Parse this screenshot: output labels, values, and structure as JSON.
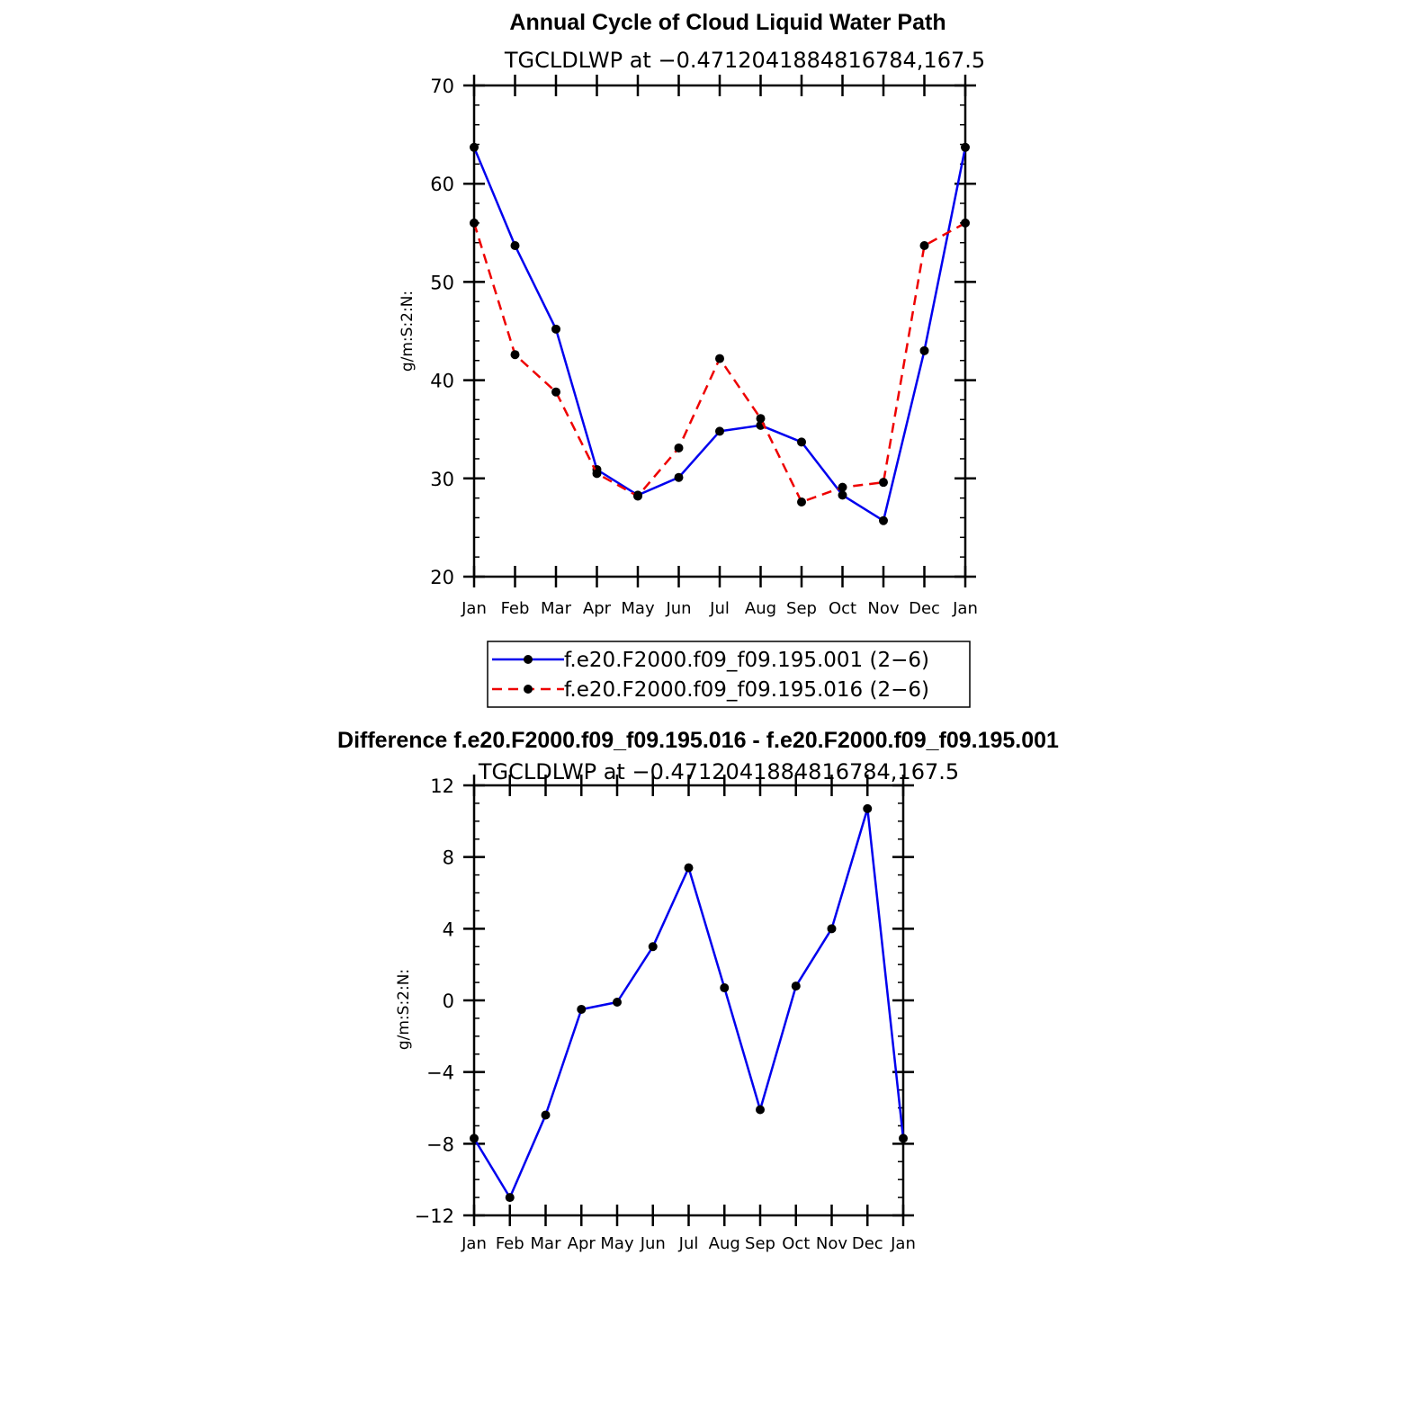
{
  "colors": {
    "series1": "#0000ee",
    "series2": "#ee0000",
    "axis": "#000000",
    "marker": "#000000"
  },
  "chart_data": [
    {
      "type": "line",
      "title": "Annual Cycle of Cloud Liquid Water Path",
      "subtitle": "TGCLDLWP at −0.4712041884816784,167.5",
      "ylabel": "g/m:S:2:N:",
      "xlabel": "",
      "categories": [
        "Jan",
        "Feb",
        "Mar",
        "Apr",
        "May",
        "Jun",
        "Jul",
        "Aug",
        "Sep",
        "Oct",
        "Nov",
        "Dec",
        "Jan"
      ],
      "ylim": [
        20,
        70
      ],
      "yticks": [
        "20",
        "30",
        "40",
        "50",
        "60",
        "70"
      ],
      "series": [
        {
          "name": "f.e20.F2000.f09_f09.195.001 (2−6)",
          "style": "solid",
          "values": [
            63.7,
            53.7,
            45.2,
            30.9,
            28.3,
            30.1,
            34.8,
            35.4,
            33.7,
            28.3,
            25.7,
            43.0,
            63.7
          ]
        },
        {
          "name": "f.e20.F2000.f09_f09.195.016 (2−6)",
          "style": "dashed",
          "values": [
            56.0,
            42.6,
            38.8,
            30.5,
            28.2,
            33.1,
            42.2,
            36.1,
            27.6,
            29.1,
            29.6,
            53.7,
            56.0
          ]
        }
      ],
      "legend": "bottom",
      "grid": false
    },
    {
      "type": "line",
      "title": "Difference f.e20.F2000.f09_f09.195.016 - f.e20.F2000.f09_f09.195.001",
      "subtitle": "TGCLDLWP at −0.4712041884816784,167.5",
      "ylabel": "g/m:S:2:N:",
      "xlabel": "",
      "categories": [
        "Jan",
        "Feb",
        "Mar",
        "Apr",
        "May",
        "Jun",
        "Jul",
        "Aug",
        "Sep",
        "Oct",
        "Nov",
        "Dec",
        "Jan"
      ],
      "ylim": [
        -12,
        12
      ],
      "yticks": [
        "−12",
        "−8",
        "−4",
        "0",
        "4",
        "8",
        "12"
      ],
      "series": [
        {
          "style": "solid",
          "values": [
            -7.7,
            -11.0,
            -6.4,
            -0.5,
            -0.1,
            3.0,
            7.4,
            0.7,
            -6.1,
            0.8,
            4.0,
            10.7,
            -7.7
          ]
        }
      ],
      "grid": false
    }
  ]
}
